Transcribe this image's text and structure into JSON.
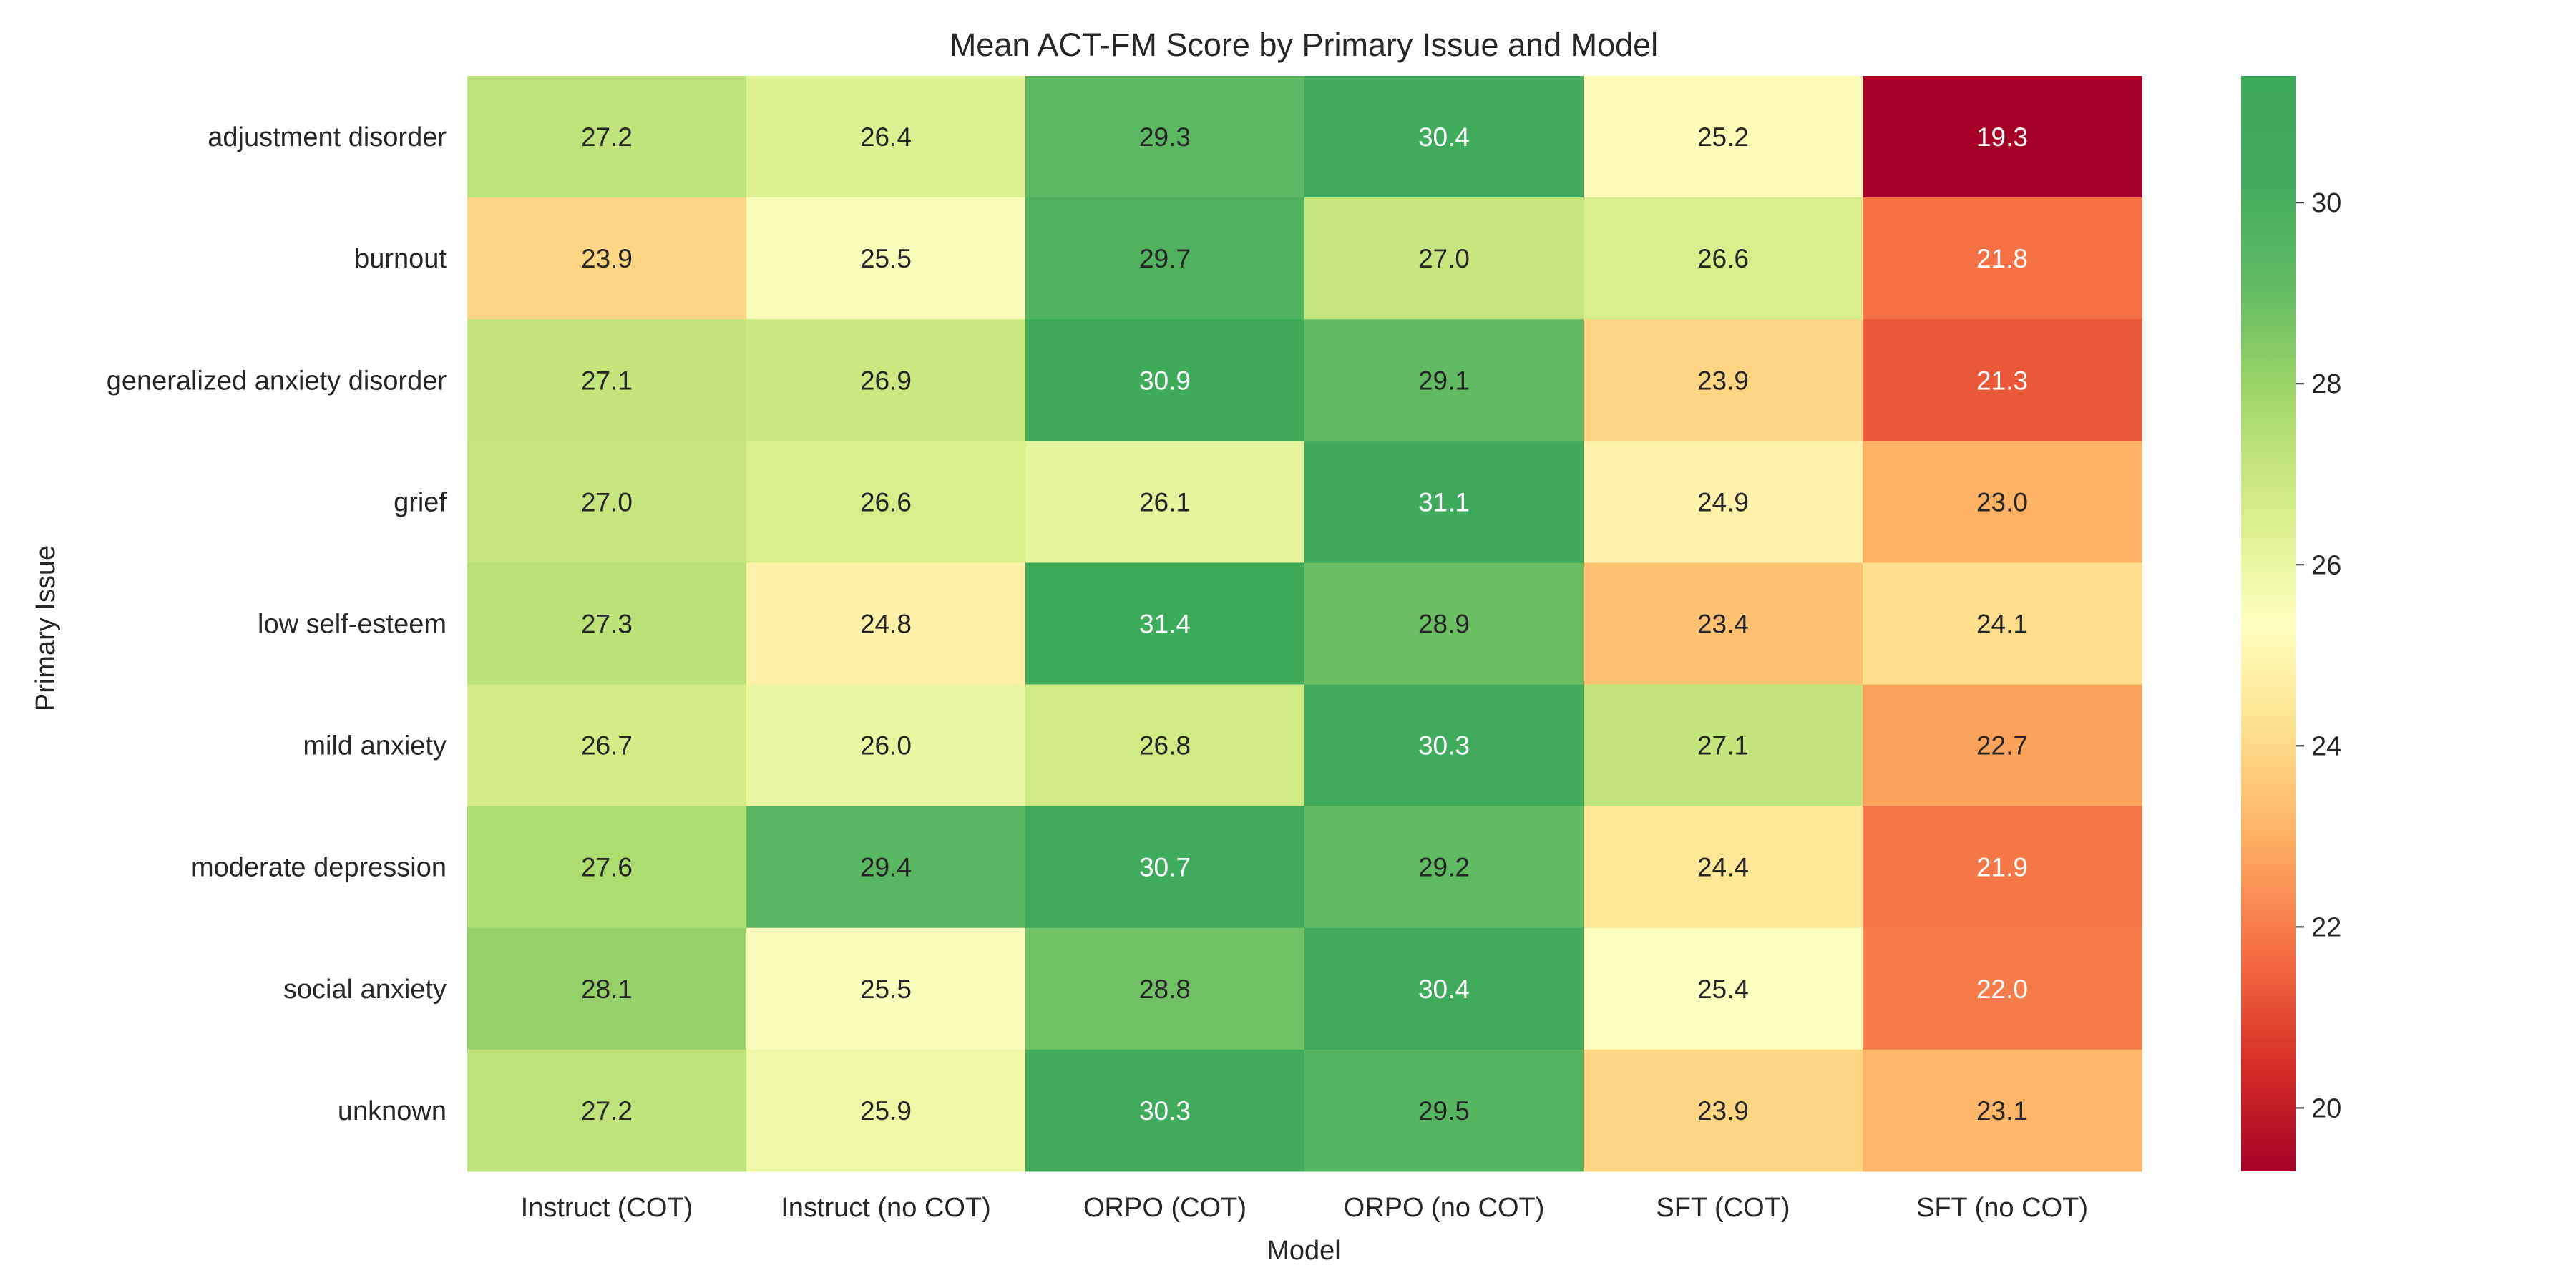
{
  "chart_data": {
    "type": "heatmap",
    "title": "Mean ACT-FM Score by Primary Issue and Model",
    "xlabel": "Model",
    "ylabel": "Primary Issue",
    "x_categories": [
      "Instruct (COT)",
      "Instruct (no COT)",
      "ORPO (COT)",
      "ORPO (no COT)",
      "SFT (COT)",
      "SFT (no COT)"
    ],
    "y_categories": [
      "adjustment disorder",
      "burnout",
      "generalized anxiety disorder",
      "grief",
      "low self-esteem",
      "mild anxiety",
      "moderate depression",
      "social anxiety",
      "unknown"
    ],
    "values": [
      [
        27.2,
        26.4,
        29.3,
        30.4,
        25.2,
        19.3
      ],
      [
        23.9,
        25.5,
        29.7,
        27.0,
        26.6,
        21.8
      ],
      [
        27.1,
        26.9,
        30.9,
        29.1,
        23.9,
        21.3
      ],
      [
        27.0,
        26.6,
        26.1,
        31.1,
        24.9,
        23.0
      ],
      [
        27.3,
        24.8,
        31.4,
        28.9,
        23.4,
        24.1
      ],
      [
        26.7,
        26.0,
        26.8,
        30.3,
        27.1,
        22.7
      ],
      [
        27.6,
        29.4,
        30.7,
        29.2,
        24.4,
        21.9
      ],
      [
        28.1,
        25.5,
        28.8,
        30.4,
        25.4,
        22.0
      ],
      [
        27.2,
        25.9,
        30.3,
        29.5,
        23.9,
        23.1
      ]
    ],
    "colormap": "RdYlGn",
    "vmin": 19.3,
    "vmax": 31.4,
    "colorbar_ticks": [
      20,
      22,
      24,
      26,
      28,
      30
    ],
    "annotations": true,
    "value_format": "0.1f"
  }
}
